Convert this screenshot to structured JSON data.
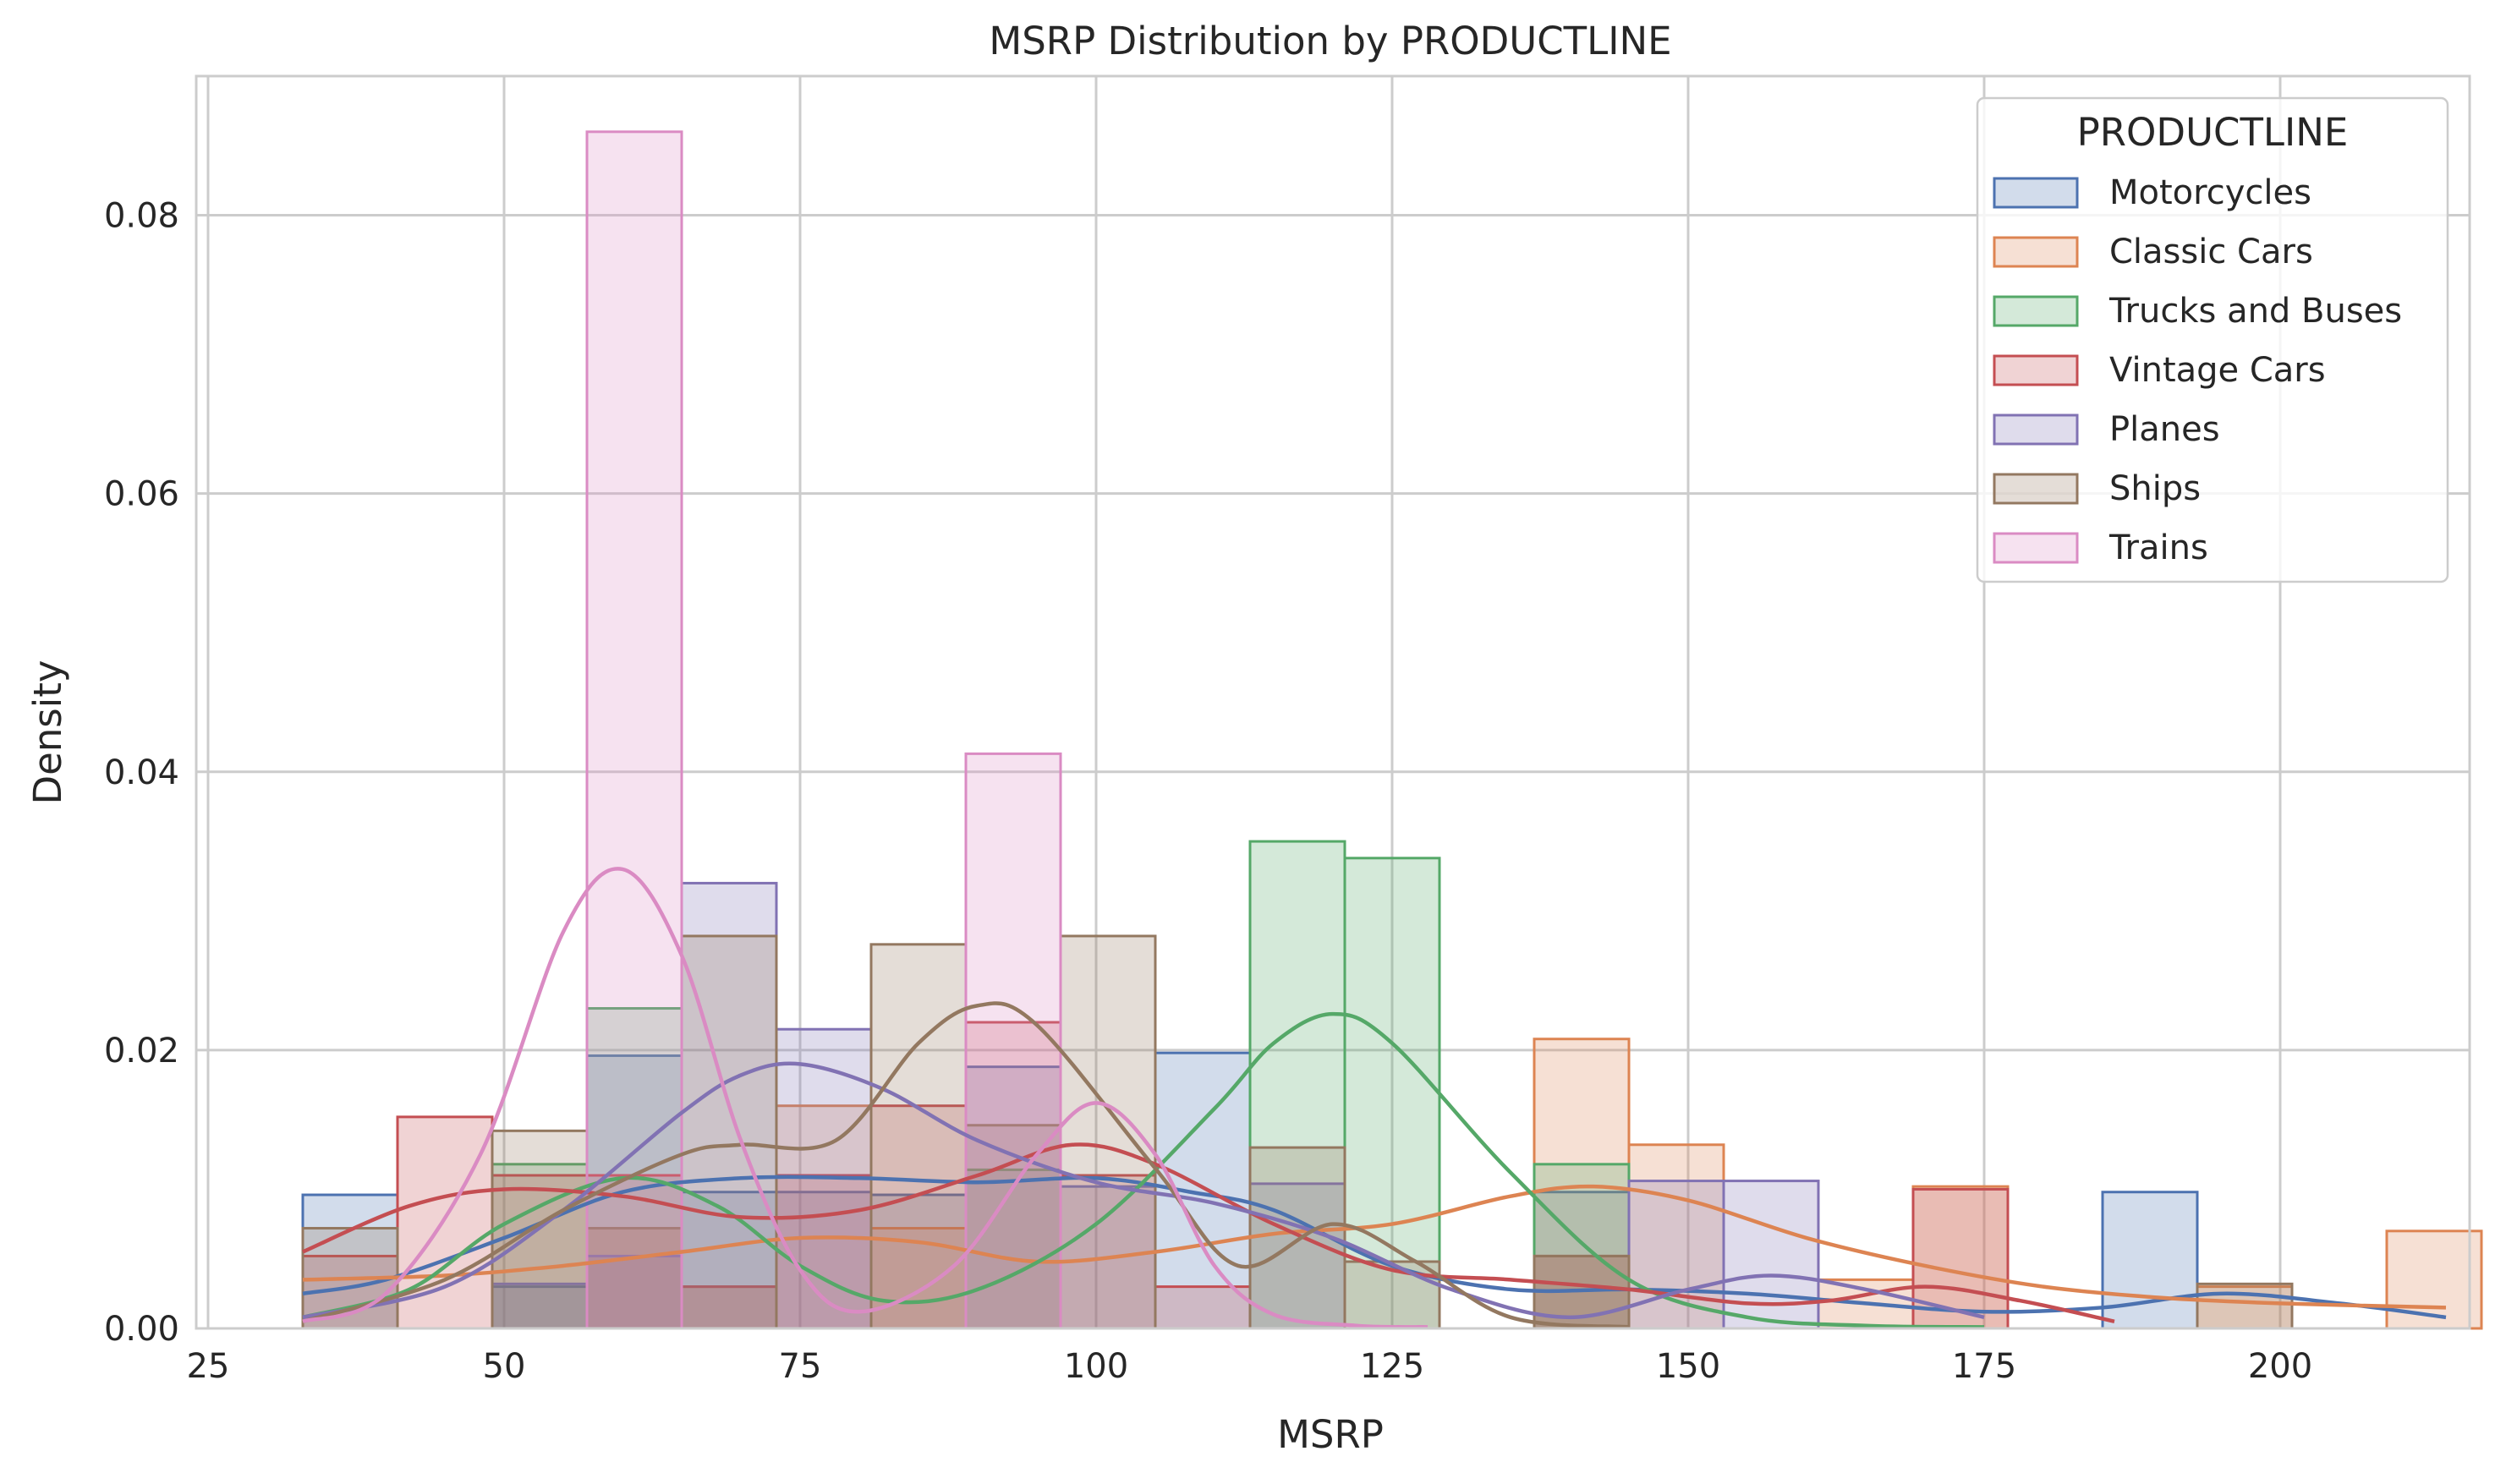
{
  "chart_data": {
    "type": "histogram",
    "title": "MSRP Distribution by PRODUCTLINE",
    "xlabel": "MSRP",
    "ylabel": "Density",
    "xlim": [
      24,
      216
    ],
    "ylim": [
      0,
      0.09
    ],
    "xticks": [
      25,
      50,
      75,
      100,
      125,
      150,
      175,
      200
    ],
    "xtick_labels": [
      "25",
      "50",
      "75",
      "100",
      "125",
      "150",
      "175",
      "200"
    ],
    "yticks": [
      0,
      0.02,
      0.04,
      0.06,
      0.08
    ],
    "ytick_labels": [
      "0.00",
      "0.02",
      "0.04",
      "0.06",
      "0.08"
    ],
    "grid": true,
    "legend": {
      "title": "PRODUCTLINE",
      "placement": "top-right"
    },
    "bin_edges": [
      33,
      41,
      49,
      57,
      65,
      73,
      81,
      89,
      97,
      105,
      113,
      121,
      129,
      137,
      145,
      153,
      161,
      169,
      177,
      185,
      193,
      201,
      209,
      217
    ],
    "series": [
      {
        "name": "Motorcycles",
        "color": "#4c72b0",
        "density": [
          0.0096,
          0,
          0.003,
          0.0196,
          0.0098,
          0.0098,
          0.0096,
          0.0188,
          0,
          0.0198,
          0,
          0,
          0,
          0.0098,
          0,
          0,
          0,
          0,
          0,
          0.0098,
          0,
          0,
          0
        ],
        "kde": {
          "x": [
            33,
            40,
            50,
            60,
            70,
            80,
            90,
            100,
            108,
            115,
            125,
            135,
            145,
            155,
            165,
            175,
            185,
            195,
            205,
            214
          ],
          "y": [
            0.0025,
            0.0035,
            0.0065,
            0.0098,
            0.0108,
            0.0108,
            0.0105,
            0.0108,
            0.0098,
            0.0085,
            0.0045,
            0.0028,
            0.0028,
            0.0025,
            0.0018,
            0.0012,
            0.0015,
            0.0025,
            0.0018,
            0.0008
          ]
        }
      },
      {
        "name": "Classic Cars",
        "color": "#dd8452",
        "density": [
          0,
          0,
          0,
          0.0072,
          0.003,
          0.016,
          0.0072,
          0,
          0,
          0,
          0,
          0,
          0,
          0.0208,
          0.0132,
          0,
          0.0035,
          0.0102,
          0,
          0,
          0.003,
          0,
          0.007
        ],
        "kde": {
          "x": [
            33,
            45,
            55,
            65,
            75,
            85,
            95,
            105,
            115,
            125,
            135,
            142,
            150,
            160,
            170,
            180,
            190,
            200,
            214
          ],
          "y": [
            0.0035,
            0.0038,
            0.0045,
            0.0055,
            0.0065,
            0.0062,
            0.0048,
            0.0055,
            0.0068,
            0.0075,
            0.0095,
            0.0102,
            0.0092,
            0.0065,
            0.0045,
            0.003,
            0.0022,
            0.0018,
            0.0015
          ]
        }
      },
      {
        "name": "Trucks and Buses",
        "color": "#55a868",
        "density": [
          0,
          0,
          0.0118,
          0.023,
          0,
          0,
          0,
          0.0114,
          0,
          0,
          0.035,
          0.0338,
          0,
          0.0118,
          0,
          0,
          0,
          0,
          0,
          0,
          0,
          0,
          0
        ],
        "kde": {
          "x": [
            33,
            42,
            50,
            60,
            68,
            75,
            82,
            90,
            100,
            110,
            115,
            120,
            125,
            135,
            145,
            155,
            165,
            175
          ],
          "y": [
            0.0008,
            0.0028,
            0.0075,
            0.0108,
            0.0088,
            0.0045,
            0.002,
            0.0028,
            0.0075,
            0.0158,
            0.0205,
            0.0226,
            0.0205,
            0.0112,
            0.0035,
            0.0008,
            0.0002,
            0.0001
          ]
        }
      },
      {
        "name": "Vintage Cars",
        "color": "#c44e52",
        "density": [
          0.0052,
          0.0152,
          0.011,
          0.011,
          0.003,
          0.011,
          0.016,
          0.022,
          0.011,
          0.003,
          0,
          0,
          0,
          0.0052,
          0,
          0,
          0,
          0.01,
          0,
          0,
          0,
          0,
          0
        ],
        "kde": {
          "x": [
            33,
            42,
            50,
            60,
            70,
            80,
            90,
            98,
            105,
            115,
            125,
            135,
            145,
            155,
            162,
            170,
            178,
            186
          ],
          "y": [
            0.0055,
            0.0088,
            0.01,
            0.0095,
            0.008,
            0.0085,
            0.011,
            0.0132,
            0.0118,
            0.0075,
            0.0042,
            0.0035,
            0.0028,
            0.0018,
            0.002,
            0.003,
            0.002,
            0.0005
          ]
        }
      },
      {
        "name": "Planes",
        "color": "#8172b3",
        "density": [
          0,
          0,
          0.0032,
          0.0052,
          0.032,
          0.0215,
          0,
          0,
          0.0102,
          0,
          0.0104,
          0,
          0,
          0,
          0.0106,
          0.0106,
          0,
          0,
          0,
          0,
          0,
          0,
          0
        ],
        "kde": {
          "x": [
            33,
            45,
            55,
            65,
            70,
            75,
            82,
            90,
            100,
            110,
            120,
            130,
            140,
            150,
            157,
            165,
            175
          ],
          "y": [
            0.0008,
            0.003,
            0.0085,
            0.0155,
            0.0182,
            0.019,
            0.0172,
            0.0135,
            0.0105,
            0.009,
            0.0065,
            0.0028,
            0.0008,
            0.0028,
            0.0038,
            0.0028,
            0.0008
          ]
        }
      },
      {
        "name": "Ships",
        "color": "#937860",
        "density": [
          0.0072,
          0,
          0.0142,
          0.0072,
          0.0282,
          0,
          0.0276,
          0.0146,
          0.0282,
          0,
          0.013,
          0.0048,
          0,
          0.0052,
          0,
          0,
          0,
          0,
          0,
          0,
          0.0032,
          0,
          0
        ],
        "kde": {
          "x": [
            33,
            45,
            55,
            65,
            70,
            78,
            85,
            90,
            95,
            105,
            112,
            120,
            127,
            135,
            145
          ],
          "y": [
            0.0005,
            0.0035,
            0.0085,
            0.0125,
            0.0132,
            0.0135,
            0.0205,
            0.0232,
            0.0218,
            0.0115,
            0.0045,
            0.0075,
            0.0048,
            0.0008,
            0.0001
          ]
        }
      },
      {
        "name": "Trains",
        "color": "#da8bc3",
        "density": [
          0,
          0,
          0,
          0.086,
          0,
          0,
          0,
          0.0413,
          0,
          0,
          0,
          0,
          0,
          0,
          0,
          0,
          0,
          0,
          0,
          0,
          0,
          0,
          0
        ],
        "kde": {
          "x": [
            33,
            40,
            48,
            55,
            60,
            65,
            70,
            75,
            80,
            88,
            95,
            100,
            105,
            110,
            115,
            122,
            128
          ],
          "y": [
            0.0005,
            0.0025,
            0.0125,
            0.0285,
            0.033,
            0.0268,
            0.0135,
            0.0042,
            0.0012,
            0.0045,
            0.0125,
            0.0162,
            0.0125,
            0.0045,
            0.001,
            0.0002,
            0.0001
          ]
        }
      }
    ]
  }
}
